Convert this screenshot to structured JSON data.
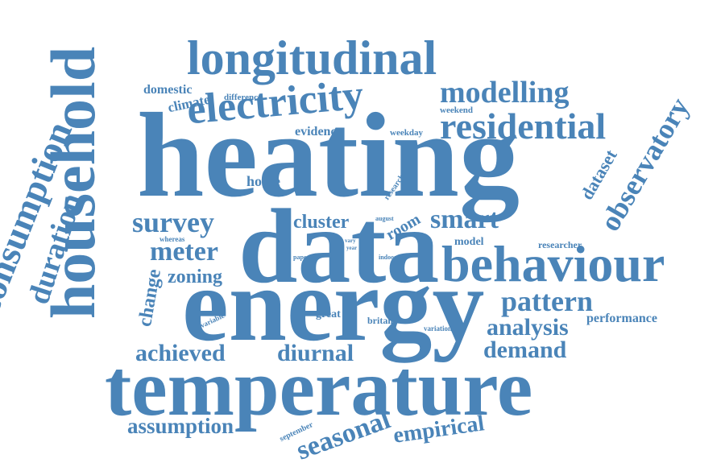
{
  "color": "#4a84b8",
  "words": [
    {
      "id": "heating",
      "text": "heating"
    },
    {
      "id": "data",
      "text": "data"
    },
    {
      "id": "energy",
      "text": "energy"
    },
    {
      "id": "temperature",
      "text": "temperature"
    },
    {
      "id": "household",
      "text": "household"
    },
    {
      "id": "longitudinal",
      "text": "longitudinal"
    },
    {
      "id": "electricity",
      "text": "electricity"
    },
    {
      "id": "behaviour",
      "text": "behaviour"
    },
    {
      "id": "residential",
      "text": "residential"
    },
    {
      "id": "modelling",
      "text": "modelling"
    },
    {
      "id": "consumption",
      "text": "consumption"
    },
    {
      "id": "duration",
      "text": "duration"
    },
    {
      "id": "observatory",
      "text": "observatory"
    },
    {
      "id": "survey",
      "text": "survey"
    },
    {
      "id": "smart",
      "text": "smart"
    },
    {
      "id": "meter",
      "text": "meter"
    },
    {
      "id": "pattern",
      "text": "pattern"
    },
    {
      "id": "analysis",
      "text": "analysis"
    },
    {
      "id": "demand",
      "text": "demand"
    },
    {
      "id": "achieved",
      "text": "achieved"
    },
    {
      "id": "diurnal",
      "text": "diurnal"
    },
    {
      "id": "assumption",
      "text": "assumption"
    },
    {
      "id": "seasonal",
      "text": "seasonal"
    },
    {
      "id": "empirical",
      "text": "empirical"
    },
    {
      "id": "zoning",
      "text": "zoning"
    },
    {
      "id": "cluster",
      "text": "cluster"
    },
    {
      "id": "change",
      "text": "change"
    },
    {
      "id": "dataset",
      "text": "dataset"
    },
    {
      "id": "room",
      "text": "room"
    },
    {
      "id": "model",
      "text": "model"
    },
    {
      "id": "researcher",
      "text": "researcher"
    },
    {
      "id": "performance",
      "text": "performance"
    },
    {
      "id": "domestic",
      "text": "domestic"
    },
    {
      "id": "climate",
      "text": "climate"
    },
    {
      "id": "difference",
      "text": "difference"
    },
    {
      "id": "evidence",
      "text": "evidence"
    },
    {
      "id": "weekday",
      "text": "weekday"
    },
    {
      "id": "weekend",
      "text": "weekend"
    },
    {
      "id": "home",
      "text": "home"
    },
    {
      "id": "research",
      "text": "research"
    },
    {
      "id": "august",
      "text": "august"
    },
    {
      "id": "whereas",
      "text": "whereas"
    },
    {
      "id": "vary",
      "text": "vary"
    },
    {
      "id": "year",
      "text": "year"
    },
    {
      "id": "paper",
      "text": "paper"
    },
    {
      "id": "indoor",
      "text": "indoor"
    },
    {
      "id": "variable",
      "text": "variable"
    },
    {
      "id": "great",
      "text": "great"
    },
    {
      "id": "britain",
      "text": "britain"
    },
    {
      "id": "variation",
      "text": "variation"
    },
    {
      "id": "september",
      "text": "september"
    }
  ]
}
